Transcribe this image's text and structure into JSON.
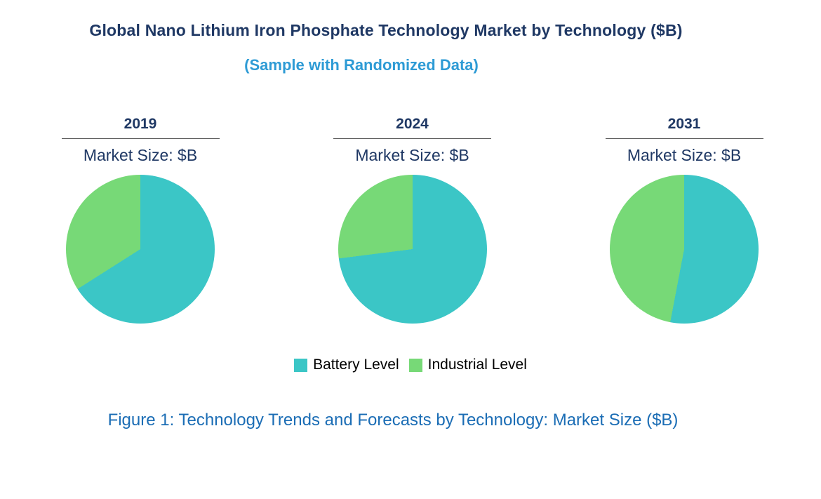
{
  "title": "Global Nano Lithium Iron Phosphate Technology Market by Technology ($B)",
  "subtitle": "(Sample with Randomized Data)",
  "caption": "Figure 1: Technology Trends and Forecasts by Technology: Market Size ($B)",
  "colors": {
    "battery": "#3BC6C6",
    "industrial": "#77D977",
    "title_text": "#1F3864",
    "subtitle_text": "#2E9BD5",
    "caption_text": "#1B6DB5",
    "pie_header_text": "#1F3864"
  },
  "legend": [
    {
      "label": "Battery Level",
      "color_key": "battery"
    },
    {
      "label": "Industrial Level",
      "color_key": "industrial"
    }
  ],
  "chart_data": [
    {
      "type": "pie",
      "title": "2019",
      "subtitle": "Market Size: $B",
      "labels": [
        "Battery Level",
        "Industrial Level"
      ],
      "values": [
        66,
        34
      ],
      "start_angle_deg": 0,
      "direction": "clockwise"
    },
    {
      "type": "pie",
      "title": "2024",
      "subtitle": "Market Size: $B",
      "labels": [
        "Battery Level",
        "Industrial Level"
      ],
      "values": [
        73,
        27
      ],
      "start_angle_deg": 0,
      "direction": "clockwise"
    },
    {
      "type": "pie",
      "title": "2031",
      "subtitle": "Market Size: $B",
      "labels": [
        "Battery Level",
        "Industrial Level"
      ],
      "values": [
        53,
        47
      ],
      "start_angle_deg": 0,
      "direction": "clockwise"
    }
  ]
}
